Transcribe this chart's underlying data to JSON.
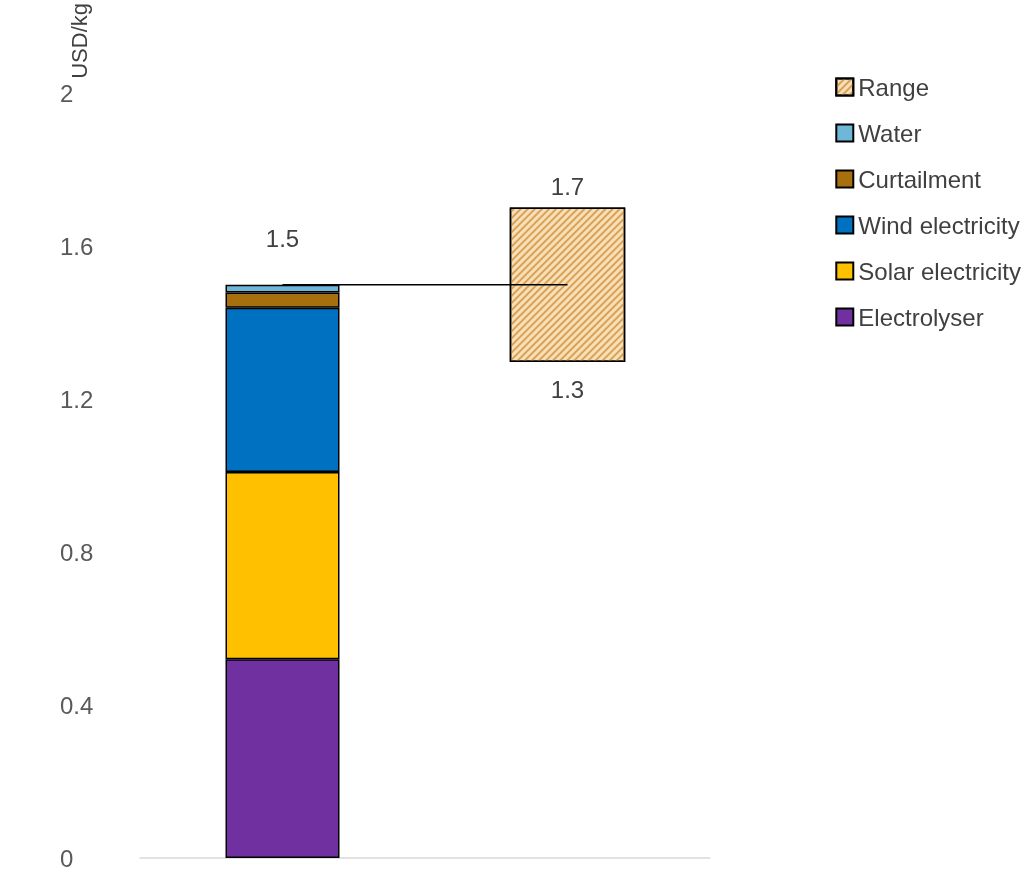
{
  "chart_data": {
    "type": "bar",
    "ylabel": "USD/kg",
    "categories": [
      null,
      null
    ],
    "stacked": true,
    "series": [
      {
        "name": "Electrolyser",
        "color": "#7030a0",
        "values": [
          0.52,
          null
        ]
      },
      {
        "name": "Solar electricity",
        "color": "#ffc000",
        "values": [
          0.49,
          null
        ]
      },
      {
        "name": "Wind electricity",
        "color": "#0070c0",
        "values": [
          0.43,
          null
        ]
      },
      {
        "name": "Curtailment",
        "color": "#a86f0e",
        "values": [
          0.04,
          null
        ]
      },
      {
        "name": "Water",
        "color": "#6fb7d6",
        "values": [
          0.02,
          null
        ]
      },
      {
        "name": "Range",
        "color": "#f7dfb8",
        "values": [
          null,
          0.4
        ],
        "base": [
          null,
          1.3
        ]
      },
      {
        "type": "line",
        "color": "#000000",
        "values": [
          1.5,
          1.5
        ],
        "marker": "none"
      }
    ],
    "totals": [
      "1.5",
      null
    ],
    "annotations": [
      {
        "text": "1.7",
        "y": 1.7
      },
      {
        "text": "1.3",
        "y": 1.3
      }
    ],
    "ylim": [
      0,
      2
    ],
    "yticks": [
      0,
      0.4,
      0.8,
      1.2,
      1.6,
      2
    ],
    "grid": false,
    "legend": "right"
  }
}
